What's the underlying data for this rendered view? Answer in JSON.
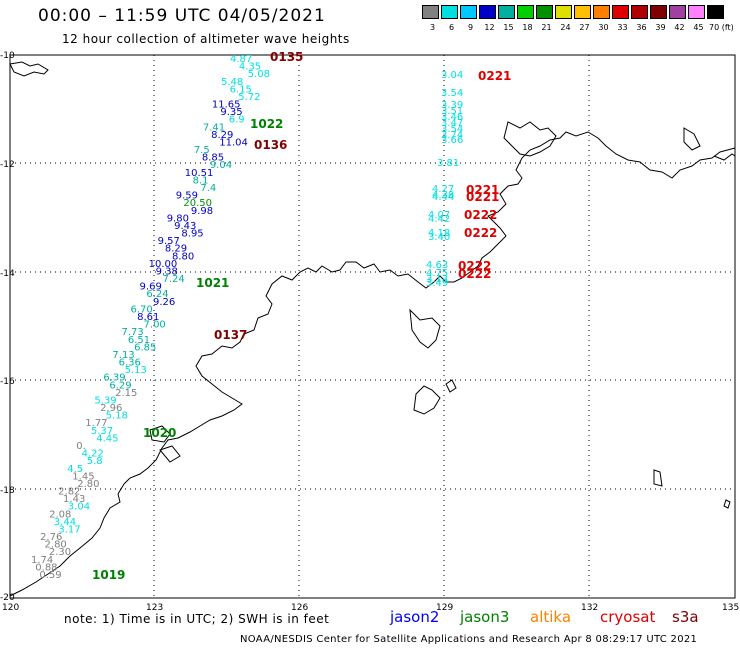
{
  "header": {
    "title": "00:00 – 11:59 UTC 04/05/2021",
    "subtitle": "12 hour collection of altimeter wave heights"
  },
  "colorbar": {
    "labels": [
      "3",
      "6",
      "9",
      "12",
      "15",
      "18",
      "21",
      "24",
      "27",
      "30",
      "33",
      "36",
      "39",
      "42",
      "45",
      "70 (ft)"
    ],
    "colors": [
      "#808080",
      "#00e0e0",
      "#00c8ff",
      "#0000c8",
      "#00b0a0",
      "#00d000",
      "#009000",
      "#e0e000",
      "#ffc000",
      "#ff8000",
      "#e00000",
      "#b00000",
      "#800000",
      "#a040a0",
      "#ff80ff",
      "#000000"
    ]
  },
  "map_axes": {
    "lon_labels": [
      "120",
      "123",
      "126",
      "129",
      "132",
      "135"
    ],
    "lat_labels": [
      "-10",
      "-12",
      "-14",
      "-16",
      "-18",
      "-20"
    ]
  },
  "satellites": {
    "jason2": {
      "label": "jason2",
      "color": "#0000ff"
    },
    "jason3": {
      "label": "jason3",
      "color": "#008000"
    },
    "altika": {
      "label": "altika",
      "color": "#ff8000"
    },
    "cryosat": {
      "label": "cryosat",
      "color": "#e00000"
    },
    "s3a": {
      "label": "s3a",
      "color": "#800000"
    }
  },
  "pass_labels": [
    {
      "text": "0135",
      "color": "#800000"
    },
    {
      "text": "1022",
      "color": "#008000"
    },
    {
      "text": "0136",
      "color": "#800000"
    },
    {
      "text": "1021",
      "color": "#008000"
    },
    {
      "text": "0137",
      "color": "#800000"
    },
    {
      "text": "1020",
      "color": "#008000"
    },
    {
      "text": "1019",
      "color": "#008000"
    },
    {
      "text": "0221",
      "color": "#e00000"
    },
    {
      "text": "0221",
      "color": "#e00000"
    },
    {
      "text": "0221",
      "color": "#e00000"
    },
    {
      "text": "0222",
      "color": "#e00000"
    },
    {
      "text": "0222",
      "color": "#e00000"
    },
    {
      "text": "0222",
      "color": "#e00000"
    },
    {
      "text": "0222",
      "color": "#e00000"
    }
  ],
  "swh_values": [
    {
      "v": "4.87",
      "c": "#00e0e0"
    },
    {
      "v": "4.35",
      "c": "#00e0e0"
    },
    {
      "v": "5.08",
      "c": "#00e0e0"
    },
    {
      "v": "5.48",
      "c": "#00e0e0"
    },
    {
      "v": "6.15",
      "c": "#00e0e0"
    },
    {
      "v": "5.72",
      "c": "#00e0e0"
    },
    {
      "v": "11.65",
      "c": "#0000c8"
    },
    {
      "v": "9.35",
      "c": "#0000c8"
    },
    {
      "v": "6.9",
      "c": "#00e0e0"
    },
    {
      "v": "7.41",
      "c": "#00b0a0"
    },
    {
      "v": "8.29",
      "c": "#0000c8"
    },
    {
      "v": "11.04",
      "c": "#0000c8"
    },
    {
      "v": "7.5",
      "c": "#00b0a0"
    },
    {
      "v": "8.85",
      "c": "#0000c8"
    },
    {
      "v": "9.04",
      "c": "#00b0a0"
    },
    {
      "v": "10.51",
      "c": "#0000c8"
    },
    {
      "v": "8.1",
      "c": "#00b0a0"
    },
    {
      "v": "7.4",
      "c": "#00b0a0"
    },
    {
      "v": "9.59",
      "c": "#0000c8"
    },
    {
      "v": "20.50",
      "c": "#009000"
    },
    {
      "v": "9.98",
      "c": "#0000c8"
    },
    {
      "v": "9.80",
      "c": "#0000c8"
    },
    {
      "v": "9.43",
      "c": "#0000c8"
    },
    {
      "v": "8.95",
      "c": "#0000c8"
    },
    {
      "v": "9.57",
      "c": "#0000c8"
    },
    {
      "v": "8.29",
      "c": "#0000c8"
    },
    {
      "v": "8.80",
      "c": "#0000c8"
    },
    {
      "v": "10.00",
      "c": "#0000c8"
    },
    {
      "v": "9.38",
      "c": "#0000c8"
    },
    {
      "v": "7.24",
      "c": "#00b0a0"
    },
    {
      "v": "9.69",
      "c": "#0000c8"
    },
    {
      "v": "6.24",
      "c": "#00b0a0"
    },
    {
      "v": "9.26",
      "c": "#0000c8"
    },
    {
      "v": "6.70",
      "c": "#00b0a0"
    },
    {
      "v": "8.61",
      "c": "#0000c8"
    },
    {
      "v": "7.00",
      "c": "#00b0a0"
    },
    {
      "v": "7.73",
      "c": "#00b0a0"
    },
    {
      "v": "6.51",
      "c": "#00b0a0"
    },
    {
      "v": "6.85",
      "c": "#00b0a0"
    },
    {
      "v": "7.13",
      "c": "#00b0a0"
    },
    {
      "v": "6.36",
      "c": "#00b0a0"
    },
    {
      "v": "5.13",
      "c": "#00e0e0"
    },
    {
      "v": "6.39",
      "c": "#00b0a0"
    },
    {
      "v": "6.29",
      "c": "#00b0a0"
    },
    {
      "v": "2.15",
      "c": "#808080"
    },
    {
      "v": "5.39",
      "c": "#00e0e0"
    },
    {
      "v": "2.96",
      "c": "#808080"
    },
    {
      "v": "5.18",
      "c": "#00e0e0"
    },
    {
      "v": "1.77",
      "c": "#808080"
    },
    {
      "v": "5.37",
      "c": "#00e0e0"
    },
    {
      "v": "4.45",
      "c": "#00e0e0"
    },
    {
      "v": "0.",
      "c": "#808080"
    },
    {
      "v": "4.22",
      "c": "#00e0e0"
    },
    {
      "v": "5.8",
      "c": "#00e0e0"
    },
    {
      "v": "4.5",
      "c": "#00e0e0"
    },
    {
      "v": "1.45",
      "c": "#808080"
    },
    {
      "v": "2.80",
      "c": "#808080"
    },
    {
      "v": "2.82",
      "c": "#808080"
    },
    {
      "v": "1.43",
      "c": "#808080"
    },
    {
      "v": "3.04",
      "c": "#00e0e0"
    },
    {
      "v": "2.08",
      "c": "#808080"
    },
    {
      "v": "3.44",
      "c": "#00e0e0"
    },
    {
      "v": "3.17",
      "c": "#00e0e0"
    },
    {
      "v": "2.76",
      "c": "#808080"
    },
    {
      "v": "2.80",
      "c": "#808080"
    },
    {
      "v": "2.30",
      "c": "#808080"
    },
    {
      "v": "1.74",
      "c": "#808080"
    },
    {
      "v": "0.88",
      "c": "#808080"
    },
    {
      "v": "0.59",
      "c": "#808080"
    },
    {
      "v": "3.04",
      "c": "#00e0e0"
    },
    {
      "v": "3.54",
      "c": "#00e0e0"
    },
    {
      "v": "3.39",
      "c": "#00e0e0"
    },
    {
      "v": "3.51",
      "c": "#00e0e0"
    },
    {
      "v": "3.46",
      "c": "#00e0e0"
    },
    {
      "v": "3.47",
      "c": "#00e0e0"
    },
    {
      "v": "3.54",
      "c": "#00e0e0"
    },
    {
      "v": "3.74",
      "c": "#00e0e0"
    },
    {
      "v": "3.66",
      "c": "#00e0e0"
    },
    {
      "v": "3.81",
      "c": "#00e0e0"
    },
    {
      "v": "4.27",
      "c": "#00e0e0"
    },
    {
      "v": "4.44",
      "c": "#00e0e0"
    },
    {
      "v": "4.38",
      "c": "#00e0e0"
    },
    {
      "v": "4.07",
      "c": "#00e0e0"
    },
    {
      "v": "4.42",
      "c": "#00e0e0"
    },
    {
      "v": "4.18",
      "c": "#00e0e0"
    },
    {
      "v": "3.40",
      "c": "#00e0e0"
    },
    {
      "v": "4.63",
      "c": "#00e0e0"
    },
    {
      "v": "4.75",
      "c": "#00e0e0"
    },
    {
      "v": "3.13",
      "c": "#00e0e0"
    },
    {
      "v": "3.49",
      "c": "#00e0e0"
    }
  ],
  "footer": {
    "note": "note: 1) Time is in UTC; 2) SWH is in feet",
    "credit": "NOAA/NESDIS Center for Satellite Applications and Research    Apr  8 08:29:17 UTC 2021"
  }
}
